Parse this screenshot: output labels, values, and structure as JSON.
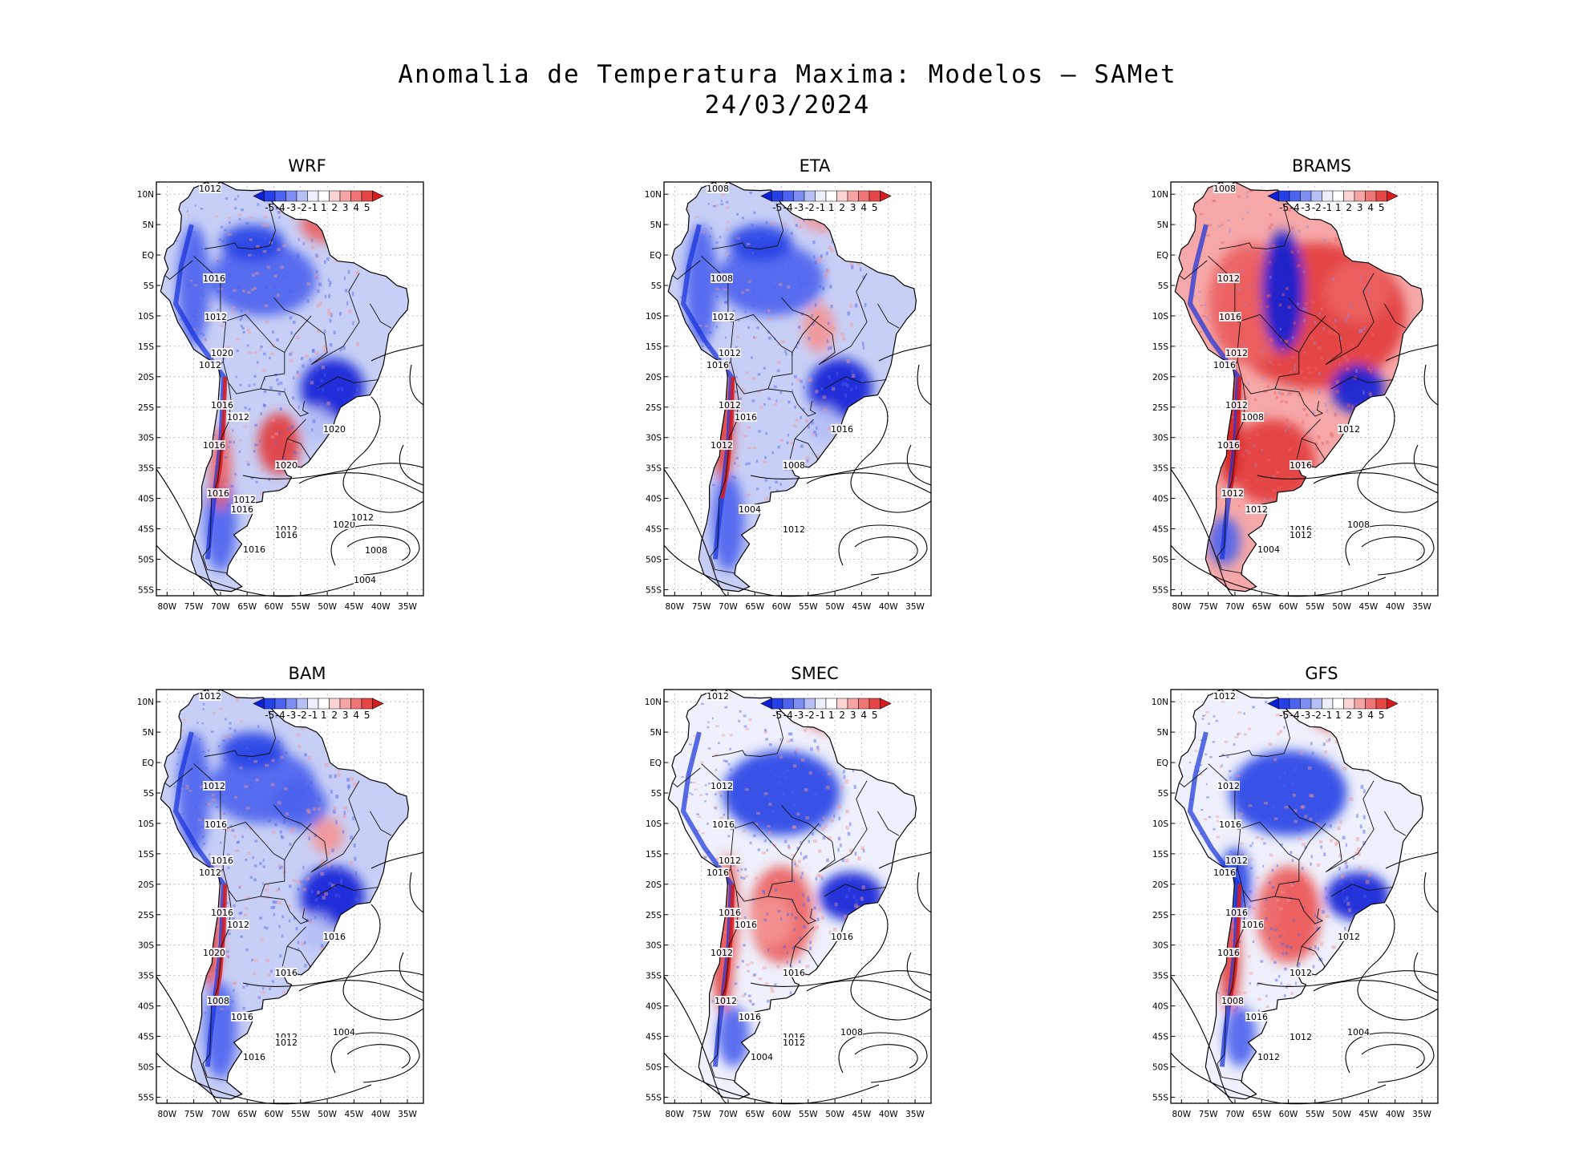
{
  "title": {
    "line1": "Anomalia de Temperatura Maxima: Modelos — SAMet",
    "line2": "24/03/2024"
  },
  "colorbar": {
    "labels": [
      "-5",
      "-4",
      "-3",
      "-2",
      "-1",
      "1",
      "2",
      "3",
      "4",
      "5"
    ],
    "colors": [
      "#0b1fd6",
      "#2540e6",
      "#4b63ef",
      "#7d8ff3",
      "#b6c0f7",
      "#eceffc",
      "#ffffff",
      "#fbd3d3",
      "#f6a4a4",
      "#f07575",
      "#e64646",
      "#d61c1c"
    ]
  },
  "axes": {
    "lat_labels": [
      "10N",
      "5N",
      "EQ",
      "5S",
      "10S",
      "15S",
      "20S",
      "25S",
      "30S",
      "35S",
      "40S",
      "45S",
      "50S",
      "55S"
    ],
    "lon_labels": [
      "80W",
      "75W",
      "70W",
      "65W",
      "60W",
      "55W",
      "50W",
      "45W",
      "40W",
      "35W"
    ]
  },
  "panels": [
    {
      "name": "WRF",
      "anomaly": "cold",
      "isobars": [
        "1012",
        "1016",
        "1012",
        "1020",
        "1012",
        "1016",
        "1012",
        "1020",
        "1016",
        "1020",
        "1016",
        "1012",
        "1016",
        "1020",
        "1016",
        "1016",
        "1012",
        "1008",
        "1004",
        "1012"
      ]
    },
    {
      "name": "ETA",
      "anomaly": "cold",
      "isobars": [
        "1008",
        "1008",
        "1012",
        "1012",
        "1016",
        "1012",
        "1016",
        "1016",
        "1012",
        "1008",
        "1004",
        "1012"
      ]
    },
    {
      "name": "BRAMS",
      "anomaly": "warm",
      "isobars": [
        "1008",
        "1012",
        "1016",
        "1012",
        "1016",
        "1012",
        "1008",
        "1012",
        "1016",
        "1016",
        "1012",
        "1016",
        "1012",
        "1008",
        "1004",
        "1012"
      ]
    },
    {
      "name": "BAM",
      "anomaly": "cold",
      "isobars": [
        "1012",
        "1012",
        "1016",
        "1016",
        "1012",
        "1016",
        "1012",
        "1016",
        "1020",
        "1016",
        "1016",
        "1012",
        "1008",
        "1004",
        "1016",
        "1012"
      ]
    },
    {
      "name": "SMEC",
      "anomaly": "mixed",
      "isobars": [
        "1012",
        "1012",
        "1016",
        "1012",
        "1016",
        "1016",
        "1016",
        "1016",
        "1012",
        "1016",
        "1016",
        "1016",
        "1012",
        "1008",
        "1004",
        "1012"
      ]
    },
    {
      "name": "GFS",
      "anomaly": "mixed",
      "isobars": [
        "1012",
        "1012",
        "1016",
        "1012",
        "1016",
        "1016",
        "1016",
        "1012",
        "1016",
        "1012",
        "1016",
        "1012",
        "1008",
        "1004",
        "1012"
      ]
    }
  ]
}
